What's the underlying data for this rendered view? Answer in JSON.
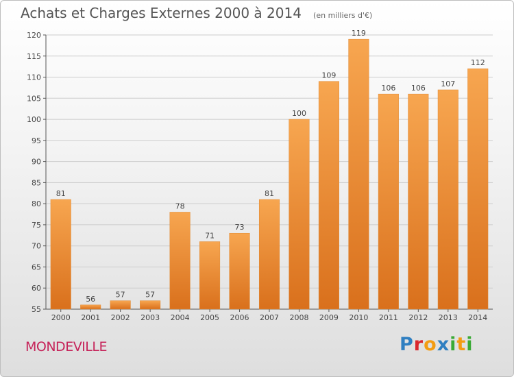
{
  "header": {
    "title": "Achats et Charges Externes 2000 à 2014",
    "unit": "(en milliers d'€)"
  },
  "footer": {
    "city": "MONDEVILLE",
    "logo_letters": [
      {
        "ch": "P",
        "color": "#2f7fc1"
      },
      {
        "ch": "r",
        "color": "#d9272e"
      },
      {
        "ch": "o",
        "color": "#f39c12"
      },
      {
        "ch": "x",
        "color": "#2f7fc1"
      },
      {
        "ch": "i",
        "color": "#3aaa35"
      },
      {
        "ch": "t",
        "color": "#f39c12"
      },
      {
        "ch": "i",
        "color": "#3aaa35"
      }
    ]
  },
  "colors": {
    "bar_top": "#f7a650",
    "bar_bottom": "#d9701c",
    "grid": "#cccccc",
    "city": "#c6245a"
  },
  "chart_data": {
    "type": "bar",
    "title": "Achats et Charges Externes 2000 à 2014",
    "xlabel": "",
    "ylabel": "",
    "categories": [
      "2000",
      "2001",
      "2002",
      "2003",
      "2004",
      "2005",
      "2006",
      "2007",
      "2008",
      "2009",
      "2010",
      "2011",
      "2012",
      "2013",
      "2014"
    ],
    "values": [
      81,
      56,
      57,
      57,
      78,
      71,
      73,
      81,
      100,
      109,
      119,
      106,
      106,
      107,
      112
    ],
    "ylim": [
      55,
      120
    ],
    "yticks": [
      55,
      60,
      65,
      70,
      75,
      80,
      85,
      90,
      95,
      100,
      105,
      110,
      115,
      120
    ],
    "grid": true,
    "legend": "none"
  }
}
